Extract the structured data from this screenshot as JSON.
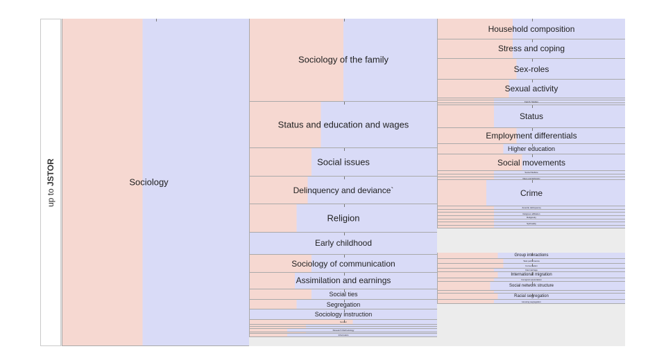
{
  "side_label": {
    "prefix": "up to ",
    "strong": "JSTOR"
  },
  "colors": {
    "pink": "#f6d8d1",
    "blue": "#d9dbf7",
    "border": "#a9a9a9",
    "empty": "#ececec"
  },
  "columns": [
    {
      "name": "level-1",
      "nodes": [
        {
          "label": "Sociology",
          "share": 1,
          "pink": 0.43
        }
      ]
    },
    {
      "name": "level-2",
      "nodes": [
        {
          "label": "Sociology of the family",
          "share": 0.252,
          "pink": 0.5
        },
        {
          "label": "Status and education and wages",
          "share": 0.142,
          "pink": 0.38
        },
        {
          "label": "Social issues",
          "share": 0.087,
          "pink": 0.33
        },
        {
          "label": "Delinquency and deviance`",
          "share": 0.084,
          "pink": 0.31
        },
        {
          "label": "Religion",
          "share": 0.085,
          "pink": 0.25
        },
        {
          "label": "Early childhood",
          "share": 0.068,
          "pink": 0.0
        },
        {
          "label": "Sociology of communication",
          "share": 0.055,
          "pink": 0.33
        },
        {
          "label": "Assimilation and earnings",
          "share": 0.05,
          "pink": 0.24
        },
        {
          "label": "Social ties",
          "share": 0.032,
          "pink": 0.33
        },
        {
          "label": "Segregation",
          "share": 0.03,
          "pink": 0.25
        },
        {
          "label": "Sociology instruction",
          "share": 0.032,
          "pink": 0.0
        },
        {
          "label": "Gender",
          "share": 0.014,
          "pink": 0.55
        },
        {
          "label": "",
          "share": 0.006,
          "pink": 0.3
        },
        {
          "label": "",
          "share": 0.006,
          "pink": 0.3
        },
        {
          "label": "Research Methodology",
          "share": 0.01,
          "pink": 0.2
        },
        {
          "label": "",
          "share": 0.006,
          "pink": 0.3
        },
        {
          "label": "Informatics",
          "share": 0.009,
          "pink": 0.2
        },
        {
          "label": "",
          "share": 0.028,
          "pink": 0,
          "empty": true
        }
      ]
    },
    {
      "name": "level-3",
      "nodes": [
        {
          "label": "Household composition",
          "share": 0.06,
          "pink": 0.4
        },
        {
          "label": "Stress and coping",
          "share": 0.054,
          "pink": 0.4
        },
        {
          "label": "Sex-roles",
          "share": 0.061,
          "pink": 0.42
        },
        {
          "label": "Sexual activity",
          "share": 0.052,
          "pink": 0.38
        },
        {
          "label": "",
          "share": 0.007,
          "pink": 0.3
        },
        {
          "label": "Family Studies",
          "share": 0.008,
          "pink": 0.3
        },
        {
          "label": "",
          "share": 0.006,
          "pink": 0.3
        },
        {
          "label": "Status",
          "share": 0.064,
          "pink": 0.3
        },
        {
          "label": "Employment differentials",
          "share": 0.046,
          "pink": 0.42
        },
        {
          "label": "Higher education",
          "share": 0.03,
          "pink": 0.35
        },
        {
          "label": "Social movements",
          "share": 0.048,
          "pink": 0.45
        },
        {
          "label": "Social Welfare",
          "share": 0.01,
          "pink": 0.3
        },
        {
          "label": "",
          "share": 0.008,
          "pink": 0.3
        },
        {
          "label": "Race and Ethnicity",
          "share": 0.008,
          "pink": 0.3
        },
        {
          "label": "Crime",
          "share": 0.074,
          "pink": 0.26
        },
        {
          "label": "Juvenile delinquency",
          "share": 0.01,
          "pink": 0.3
        },
        {
          "label": "",
          "share": 0.008,
          "pink": 0.3
        },
        {
          "label": "Religious affiliation",
          "share": 0.01,
          "pink": 0.3
        },
        {
          "label": "Religiosity",
          "share": 0.01,
          "pink": 0.3
        },
        {
          "label": "",
          "share": 0.008,
          "pink": 0.3
        },
        {
          "label": "Spirituality",
          "share": 0.01,
          "pink": 0.3
        },
        {
          "label": "",
          "share": 0.008,
          "pink": 0.3
        },
        {
          "label": "",
          "share": 0.069,
          "pink": 0,
          "empty": true
        },
        {
          "label": "Group interactions",
          "share": 0.018,
          "pink": 0.32
        },
        {
          "label": "Task performance",
          "share": 0.014,
          "pink": 0.35
        },
        {
          "label": "Conversation",
          "share": 0.013,
          "pink": 0.35
        },
        {
          "label": "Intermarriage",
          "share": 0.01,
          "pink": 0.3
        },
        {
          "label": "International migration",
          "share": 0.018,
          "pink": 0.32
        },
        {
          "label": "Immigrant assimilation",
          "share": 0.01,
          "pink": 0.3
        },
        {
          "label": "Social network structure",
          "share": 0.026,
          "pink": 0.28
        },
        {
          "label": "",
          "share": 0.008,
          "pink": 0.3
        },
        {
          "label": "Racial segregation",
          "share": 0.018,
          "pink": 0.32
        },
        {
          "label": "Housing segregation",
          "share": 0.011,
          "pink": 0.3
        },
        {
          "label": "",
          "share": 0.121,
          "pink": 0,
          "empty": true
        }
      ]
    }
  ]
}
